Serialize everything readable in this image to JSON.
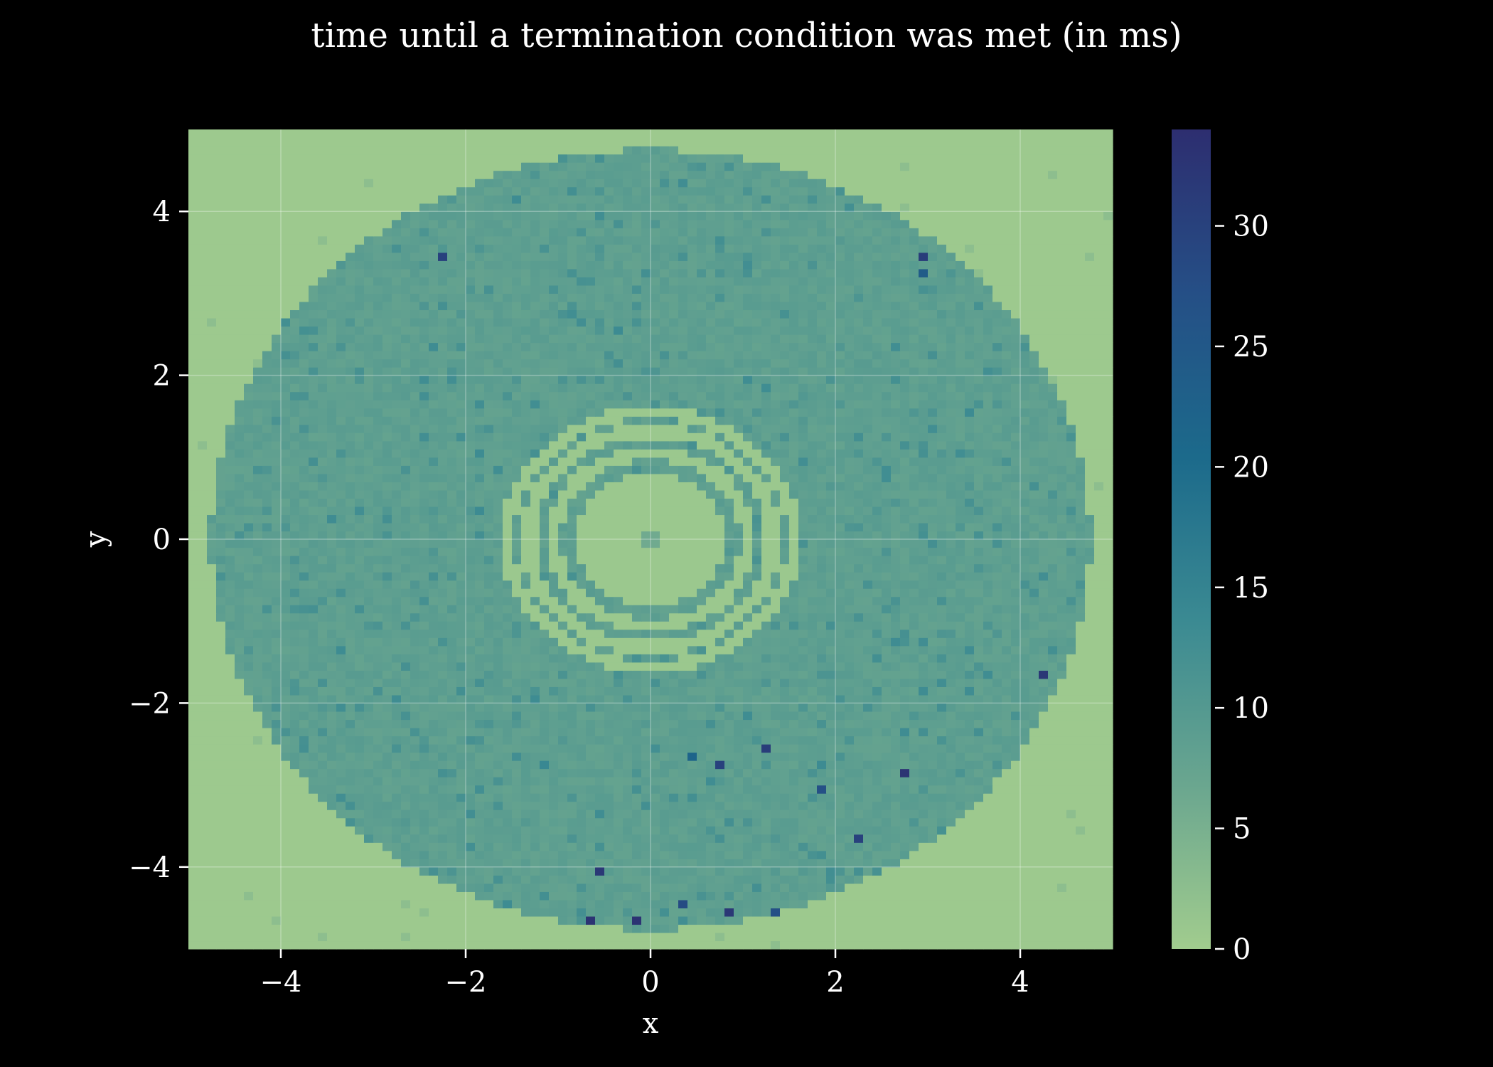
{
  "chart_data": {
    "type": "heatmap",
    "title": "time until a termination condition was met (in ms)",
    "xlabel": "x",
    "ylabel": "y",
    "xlim": [
      -5,
      5
    ],
    "ylim": [
      -5,
      5
    ],
    "x_ticks": [
      -4,
      -2,
      0,
      2,
      4
    ],
    "y_ticks": [
      -4,
      -2,
      0,
      2,
      4
    ],
    "x_tick_labels": [
      "−4",
      "−2",
      "0",
      "2",
      "4"
    ],
    "y_tick_labels": [
      "−4",
      "−2",
      "0",
      "2",
      "4"
    ],
    "grid": true,
    "grid_size": [
      100,
      100
    ],
    "colorbar": {
      "range": [
        0,
        34
      ],
      "ticks": [
        0,
        5,
        10,
        15,
        20,
        25,
        30
      ],
      "tick_labels": [
        "0",
        "5",
        "10",
        "15",
        "20",
        "25",
        "30"
      ],
      "colormap": "crest_r",
      "colors": [
        "#a1cc8e",
        "#6aa68f",
        "#3b8a92",
        "#1c6a8b",
        "#254f86",
        "#2d2e70"
      ]
    },
    "field": {
      "outside_value": 0.5,
      "disk_radius": 4.76,
      "disk_value": 8.5,
      "inner_region_radius": 0.82,
      "inner_region_value": 0.8,
      "inner_rings": [
        {
          "radius": 1.05,
          "width": 0.09,
          "value": 0.8
        },
        {
          "radius": 1.33,
          "width": 0.09,
          "value": 0.8
        },
        {
          "radius": 1.55,
          "width": 0.06,
          "value": 0.8
        }
      ],
      "speckle_noise": 1.8
    },
    "hot_cells": [
      {
        "x": -2.25,
        "y": 3.48,
        "value": 30
      },
      {
        "x": 2.95,
        "y": 3.48,
        "value": 31
      },
      {
        "x": 2.95,
        "y": 3.28,
        "value": 24
      },
      {
        "x": 4.28,
        "y": -1.65,
        "value": 32
      },
      {
        "x": 0.45,
        "y": -2.68,
        "value": 22
      },
      {
        "x": 0.75,
        "y": -2.78,
        "value": 30
      },
      {
        "x": 1.25,
        "y": -2.58,
        "value": 31
      },
      {
        "x": 1.85,
        "y": -3.08,
        "value": 27
      },
      {
        "x": 2.75,
        "y": -2.88,
        "value": 33
      },
      {
        "x": 2.25,
        "y": -3.68,
        "value": 30
      },
      {
        "x": -1.15,
        "y": -2.78,
        "value": 14
      },
      {
        "x": -0.55,
        "y": -4.08,
        "value": 32
      },
      {
        "x": 0.35,
        "y": -4.48,
        "value": 28
      },
      {
        "x": 0.85,
        "y": -4.58,
        "value": 32
      },
      {
        "x": 1.35,
        "y": -4.58,
        "value": 27
      },
      {
        "x": -0.65,
        "y": -4.68,
        "value": 33
      },
      {
        "x": -0.15,
        "y": -4.68,
        "value": 33
      },
      {
        "x": 0.05,
        "y": 0.05,
        "value": 6
      },
      {
        "x": -0.05,
        "y": 0.05,
        "value": 6
      },
      {
        "x": 0.05,
        "y": -0.05,
        "value": 6
      },
      {
        "x": -0.05,
        "y": -0.05,
        "value": 6
      }
    ]
  }
}
